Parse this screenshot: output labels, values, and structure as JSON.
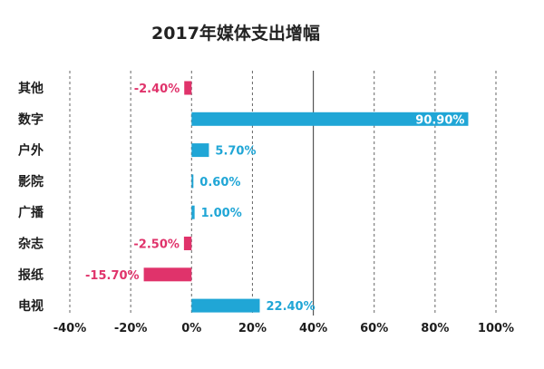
{
  "chart_data": {
    "type": "bar",
    "orientation": "horizontal",
    "title": "2017年媒体支出增幅",
    "categories": [
      "其他",
      "数字",
      "户外",
      "影院",
      "广播",
      "杂志",
      "报纸",
      "电视"
    ],
    "values": [
      -2.4,
      90.9,
      5.7,
      0.6,
      1.0,
      -2.5,
      -15.7,
      22.4
    ],
    "value_labels": [
      "-2.40%",
      "90.90%",
      "5.70%",
      "0.60%",
      "1.00%",
      "-2.50%",
      "-15.70%",
      "22.40%"
    ],
    "xlim": [
      -40,
      100
    ],
    "x_ticks": [
      -40,
      -20,
      0,
      20,
      40,
      60,
      80,
      100
    ],
    "x_tick_labels": [
      "-40%",
      "-20%",
      "0%",
      "20%",
      "40%",
      "60%",
      "80%",
      "100%"
    ],
    "grid": "vertical",
    "colors": {
      "positive": "#20a6d6",
      "negative": "#e0336b",
      "grid_dashed": "#666666",
      "grid_solid": "#555555",
      "text": "#1d1d1d"
    }
  }
}
